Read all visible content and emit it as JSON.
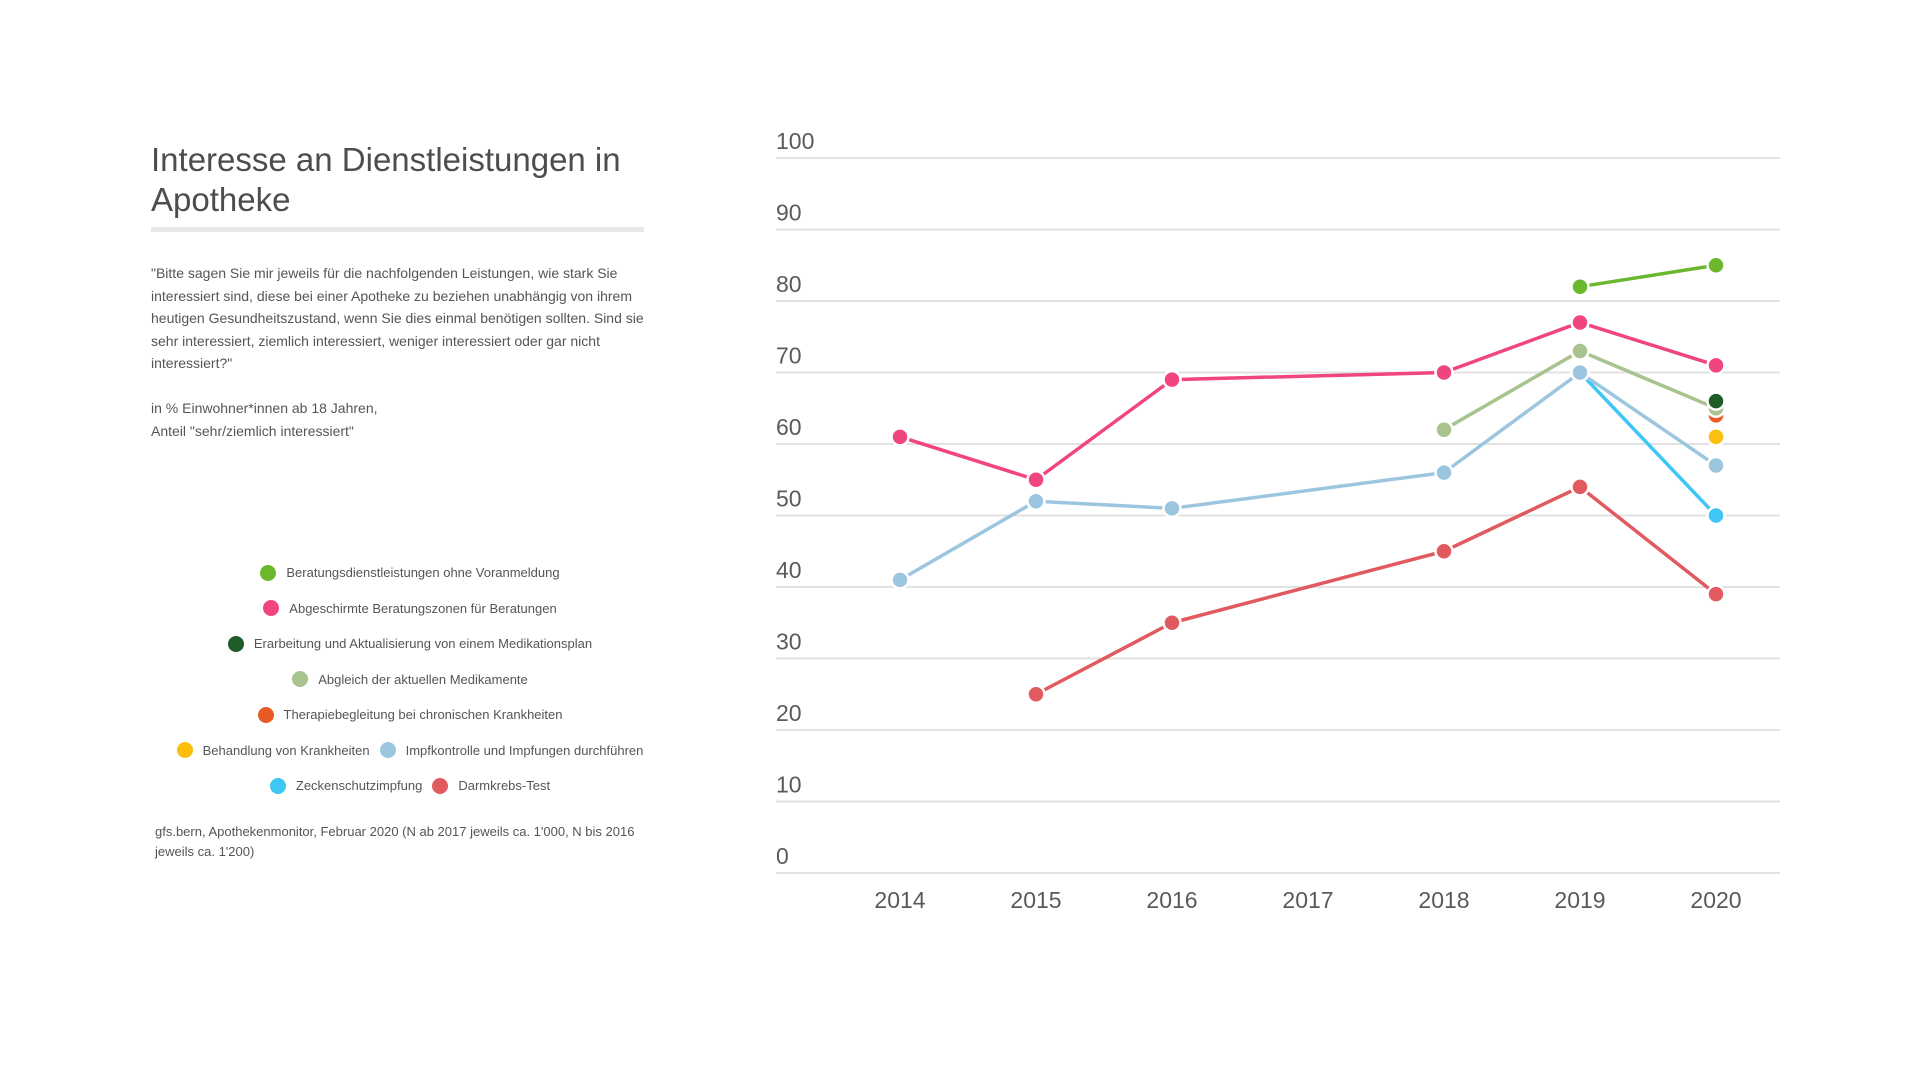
{
  "header": {
    "title": "Interesse an Dienstleistungen in Apotheke"
  },
  "question": {
    "text": "\"Bitte sagen Sie mir jeweils für die nachfolgenden Leistungen, wie stark Sie interessiert sind, diese bei einer Apotheke zu beziehen unabhängig von ihrem heutigen Gesundheitszustand, wenn Sie dies einmal benötigen sollten. Sind sie sehr interessiert, ziemlich interessiert, weniger interessiert oder gar nicht interessiert?\"",
    "unit_line1": "in % Einwohner*innen ab 18 Jahren,",
    "unit_line2": "Anteil \"sehr/ziemlich interessiert\""
  },
  "source": "gfs.bern, Apothekenmonitor, Februar 2020 (N ab 2017 jeweils ca. 1'000, N bis 2016 jeweils ca. 1'200)",
  "chart_data": {
    "type": "line",
    "title": "Interesse an Dienstleistungen in Apotheke",
    "xlabel": "",
    "ylabel": "",
    "x": [
      "2014",
      "2015",
      "2016",
      "2017",
      "2018",
      "2019",
      "2020"
    ],
    "ylim": [
      0,
      100
    ],
    "yticks": [
      0,
      10,
      20,
      30,
      40,
      50,
      60,
      70,
      80,
      90,
      100
    ],
    "grid": true,
    "legend_position": "left",
    "series": [
      {
        "name": "Beratungsdienstleistungen ohne Voranmeldung",
        "color": "#6bb82e",
        "values": [
          null,
          null,
          null,
          null,
          null,
          82,
          85
        ]
      },
      {
        "name": "Abgeschirmte Beratungszonen für Beratungen",
        "color": "#f0457f",
        "values": [
          61,
          55,
          69,
          null,
          70,
          77,
          71
        ]
      },
      {
        "name": "Erarbeitung und Aktualisierung von einem Medikationsplan",
        "color": "#1e5c28",
        "values": [
          null,
          null,
          null,
          null,
          null,
          null,
          66
        ]
      },
      {
        "name": "Abgleich der aktuellen Medikamente",
        "color": "#a8c38d",
        "values": [
          null,
          null,
          null,
          null,
          62,
          73,
          65
        ]
      },
      {
        "name": "Therapiebegleitung bei chronischen Krankheiten",
        "color": "#e85a24",
        "values": [
          null,
          null,
          null,
          null,
          null,
          null,
          64
        ]
      },
      {
        "name": "Behandlung von Krankheiten",
        "color": "#fbbf0e",
        "values": [
          null,
          null,
          null,
          null,
          null,
          null,
          61
        ]
      },
      {
        "name": "Impfkontrolle und Impfungen durchführen",
        "color": "#9cc6e0",
        "values": [
          41,
          52,
          51,
          null,
          56,
          70,
          57
        ]
      },
      {
        "name": "Zeckenschutzimpfung",
        "color": "#3ec6f5",
        "values": [
          null,
          null,
          null,
          null,
          null,
          70,
          50
        ]
      },
      {
        "name": "Darmkrebs-Test",
        "color": "#e05a5f",
        "values": [
          null,
          25,
          35,
          null,
          45,
          54,
          39
        ]
      }
    ]
  },
  "legend_rows": [
    [
      0
    ],
    [
      1
    ],
    [
      2
    ],
    [
      3
    ],
    [
      4
    ],
    [
      5,
      6
    ],
    [
      7,
      8
    ]
  ]
}
